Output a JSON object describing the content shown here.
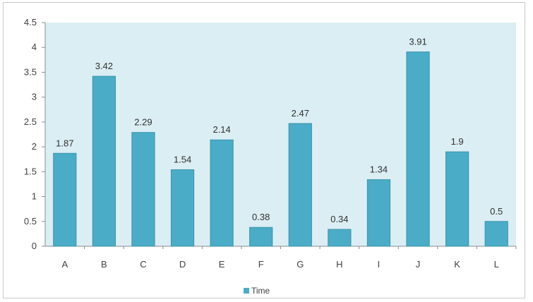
{
  "chart_data": {
    "type": "bar",
    "title": "",
    "xlabel": "",
    "ylabel": "",
    "categories": [
      "A",
      "B",
      "C",
      "D",
      "E",
      "F",
      "G",
      "H",
      "I",
      "J",
      "K",
      "L"
    ],
    "series": [
      {
        "name": "Time",
        "values": [
          1.87,
          3.42,
          2.29,
          1.54,
          2.14,
          0.38,
          2.47,
          0.34,
          1.34,
          3.91,
          1.9,
          0.5
        ],
        "data_labels": [
          "1.87",
          "3.42",
          "2.29",
          "1.54",
          "2.14",
          "0.38",
          "2.47",
          "0.34",
          "1.34",
          "3.91",
          "1.9",
          "0.5"
        ]
      }
    ],
    "ylim": [
      0,
      4.5
    ],
    "y_ticks": [
      "0",
      "0.5",
      "1",
      "1.5",
      "2",
      "2.5",
      "3",
      "3.5",
      "4",
      "4.5"
    ],
    "grid": false,
    "legend_position": "bottom",
    "colors": {
      "bar": "#4aacc6",
      "bar_edge": "#3d95ad",
      "plot_background": "#dbeef4"
    }
  }
}
